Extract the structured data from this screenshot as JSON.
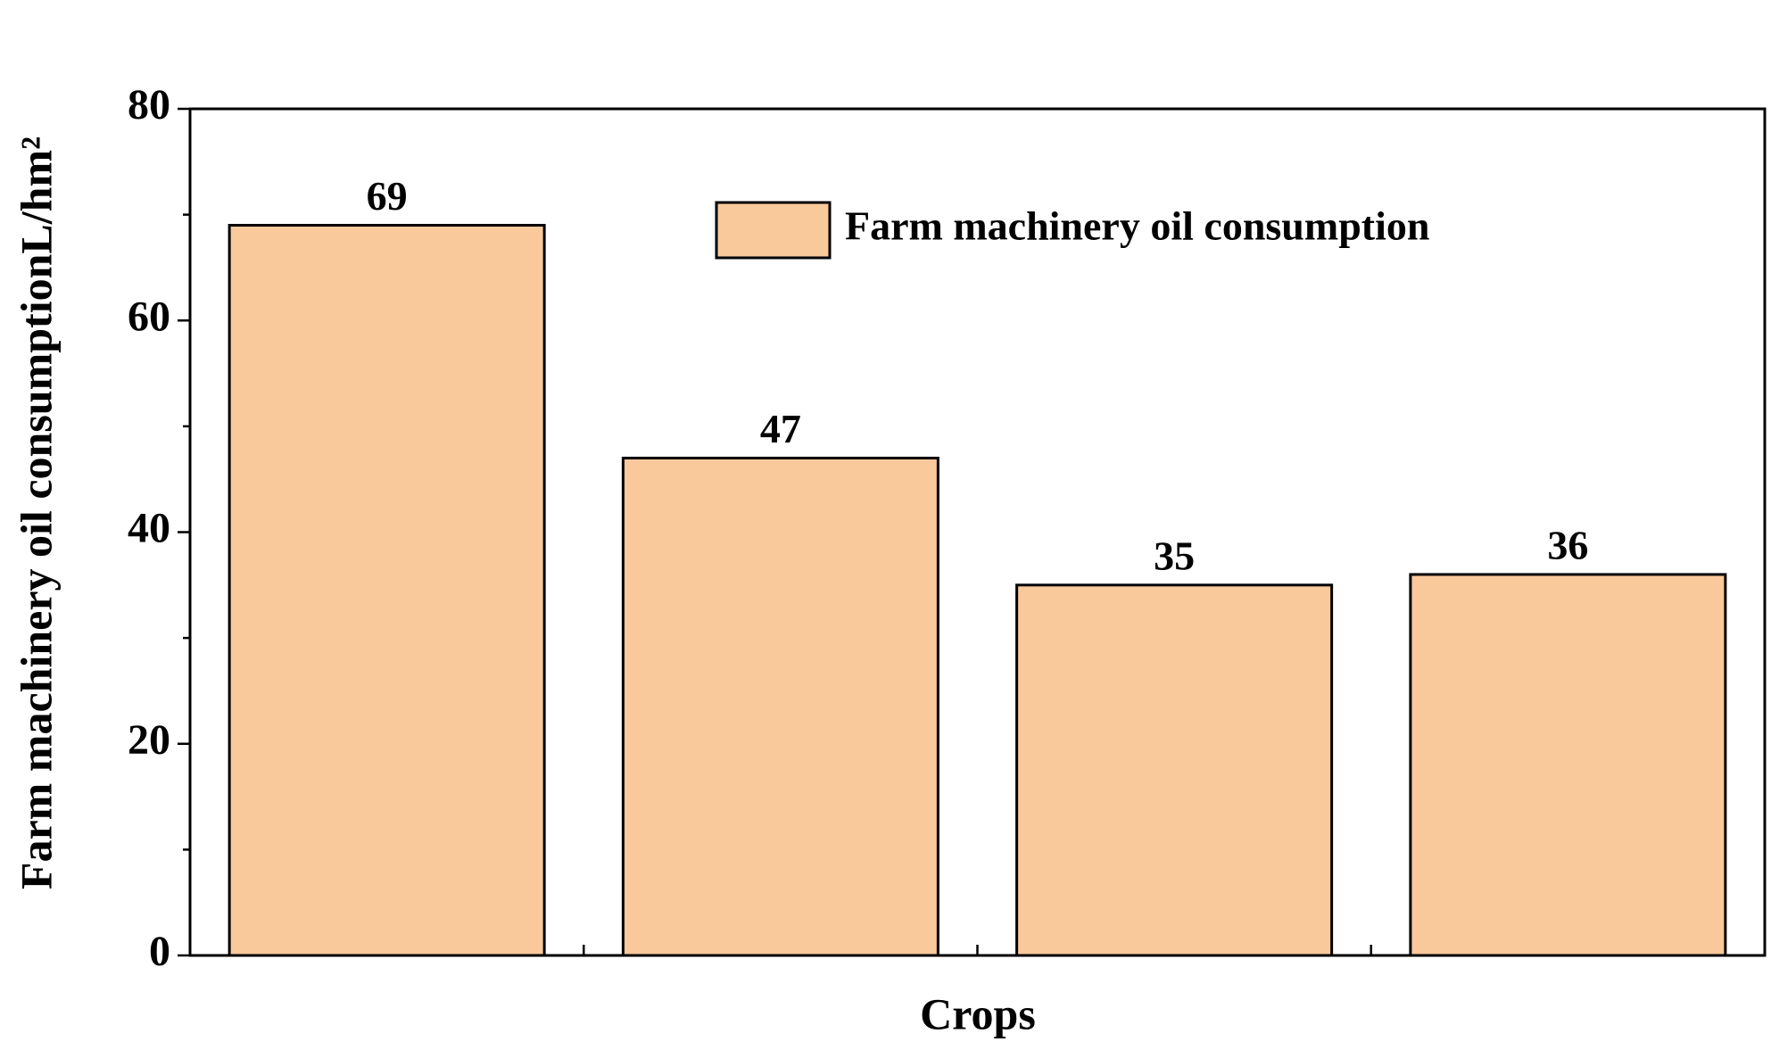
{
  "chart_data": {
    "type": "bar",
    "x_label": "Crops",
    "y_label": "Farm machinery oil consumptionL/hm²",
    "categories": [
      null,
      null,
      null,
      null
    ],
    "series": [
      {
        "name": "Farm machinery oil consumption",
        "color": "#f9c89b",
        "values": [
          69,
          47,
          35,
          36
        ]
      }
    ],
    "ylim": [
      0,
      80
    ],
    "yticks": [
      0,
      20,
      40,
      60,
      80
    ],
    "yminorticks": [
      10,
      30,
      50,
      70
    ],
    "grid": false,
    "legend": "upper right"
  }
}
